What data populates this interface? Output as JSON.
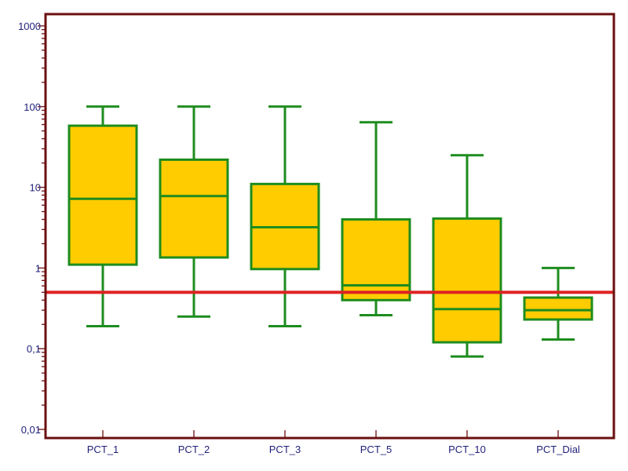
{
  "chart_data": {
    "type": "box",
    "title": "",
    "xlabel": "",
    "ylabel": "",
    "scale": "log",
    "ylim": [
      0.01,
      1000
    ],
    "y_ticks": [
      {
        "value": 0.01,
        "label": "0,01"
      },
      {
        "value": 0.1,
        "label": "0,1"
      },
      {
        "value": 1,
        "label": "1"
      },
      {
        "value": 10,
        "label": "10"
      },
      {
        "value": 100,
        "label": "100"
      },
      {
        "value": 1000,
        "label": "1000"
      }
    ],
    "categories": [
      "PCT_1",
      "PCT_2",
      "PCT_3",
      "PCT_5",
      "PCT_10",
      "PCT_Dial"
    ],
    "boxes": [
      {
        "category": "PCT_1",
        "whisker_low": 0.19,
        "q1": 1.1,
        "median": 7.2,
        "q3": 58,
        "whisker_high": 100
      },
      {
        "category": "PCT_2",
        "whisker_low": 0.25,
        "q1": 1.35,
        "median": 7.8,
        "q3": 22,
        "whisker_high": 100
      },
      {
        "category": "PCT_3",
        "whisker_low": 0.19,
        "q1": 0.97,
        "median": 3.2,
        "q3": 11,
        "whisker_high": 100
      },
      {
        "category": "PCT_5",
        "whisker_low": 0.26,
        "q1": 0.4,
        "median": 0.61,
        "q3": 4,
        "whisker_high": 64
      },
      {
        "category": "PCT_10",
        "whisker_low": 0.08,
        "q1": 0.12,
        "median": 0.31,
        "q3": 4.1,
        "whisker_high": 25
      },
      {
        "category": "PCT_Dial",
        "whisker_low": 0.13,
        "q1": 0.23,
        "median": 0.3,
        "q3": 0.43,
        "whisker_high": 1
      }
    ],
    "reference_line": {
      "value": 0.5,
      "color": "#dd2222"
    },
    "grid": false,
    "legend": "none",
    "colors": {
      "box_fill": "#ffcc00",
      "box_stroke": "#1e8c1e",
      "frame": "#6b0f0f",
      "text": "#1f1f7a"
    }
  }
}
